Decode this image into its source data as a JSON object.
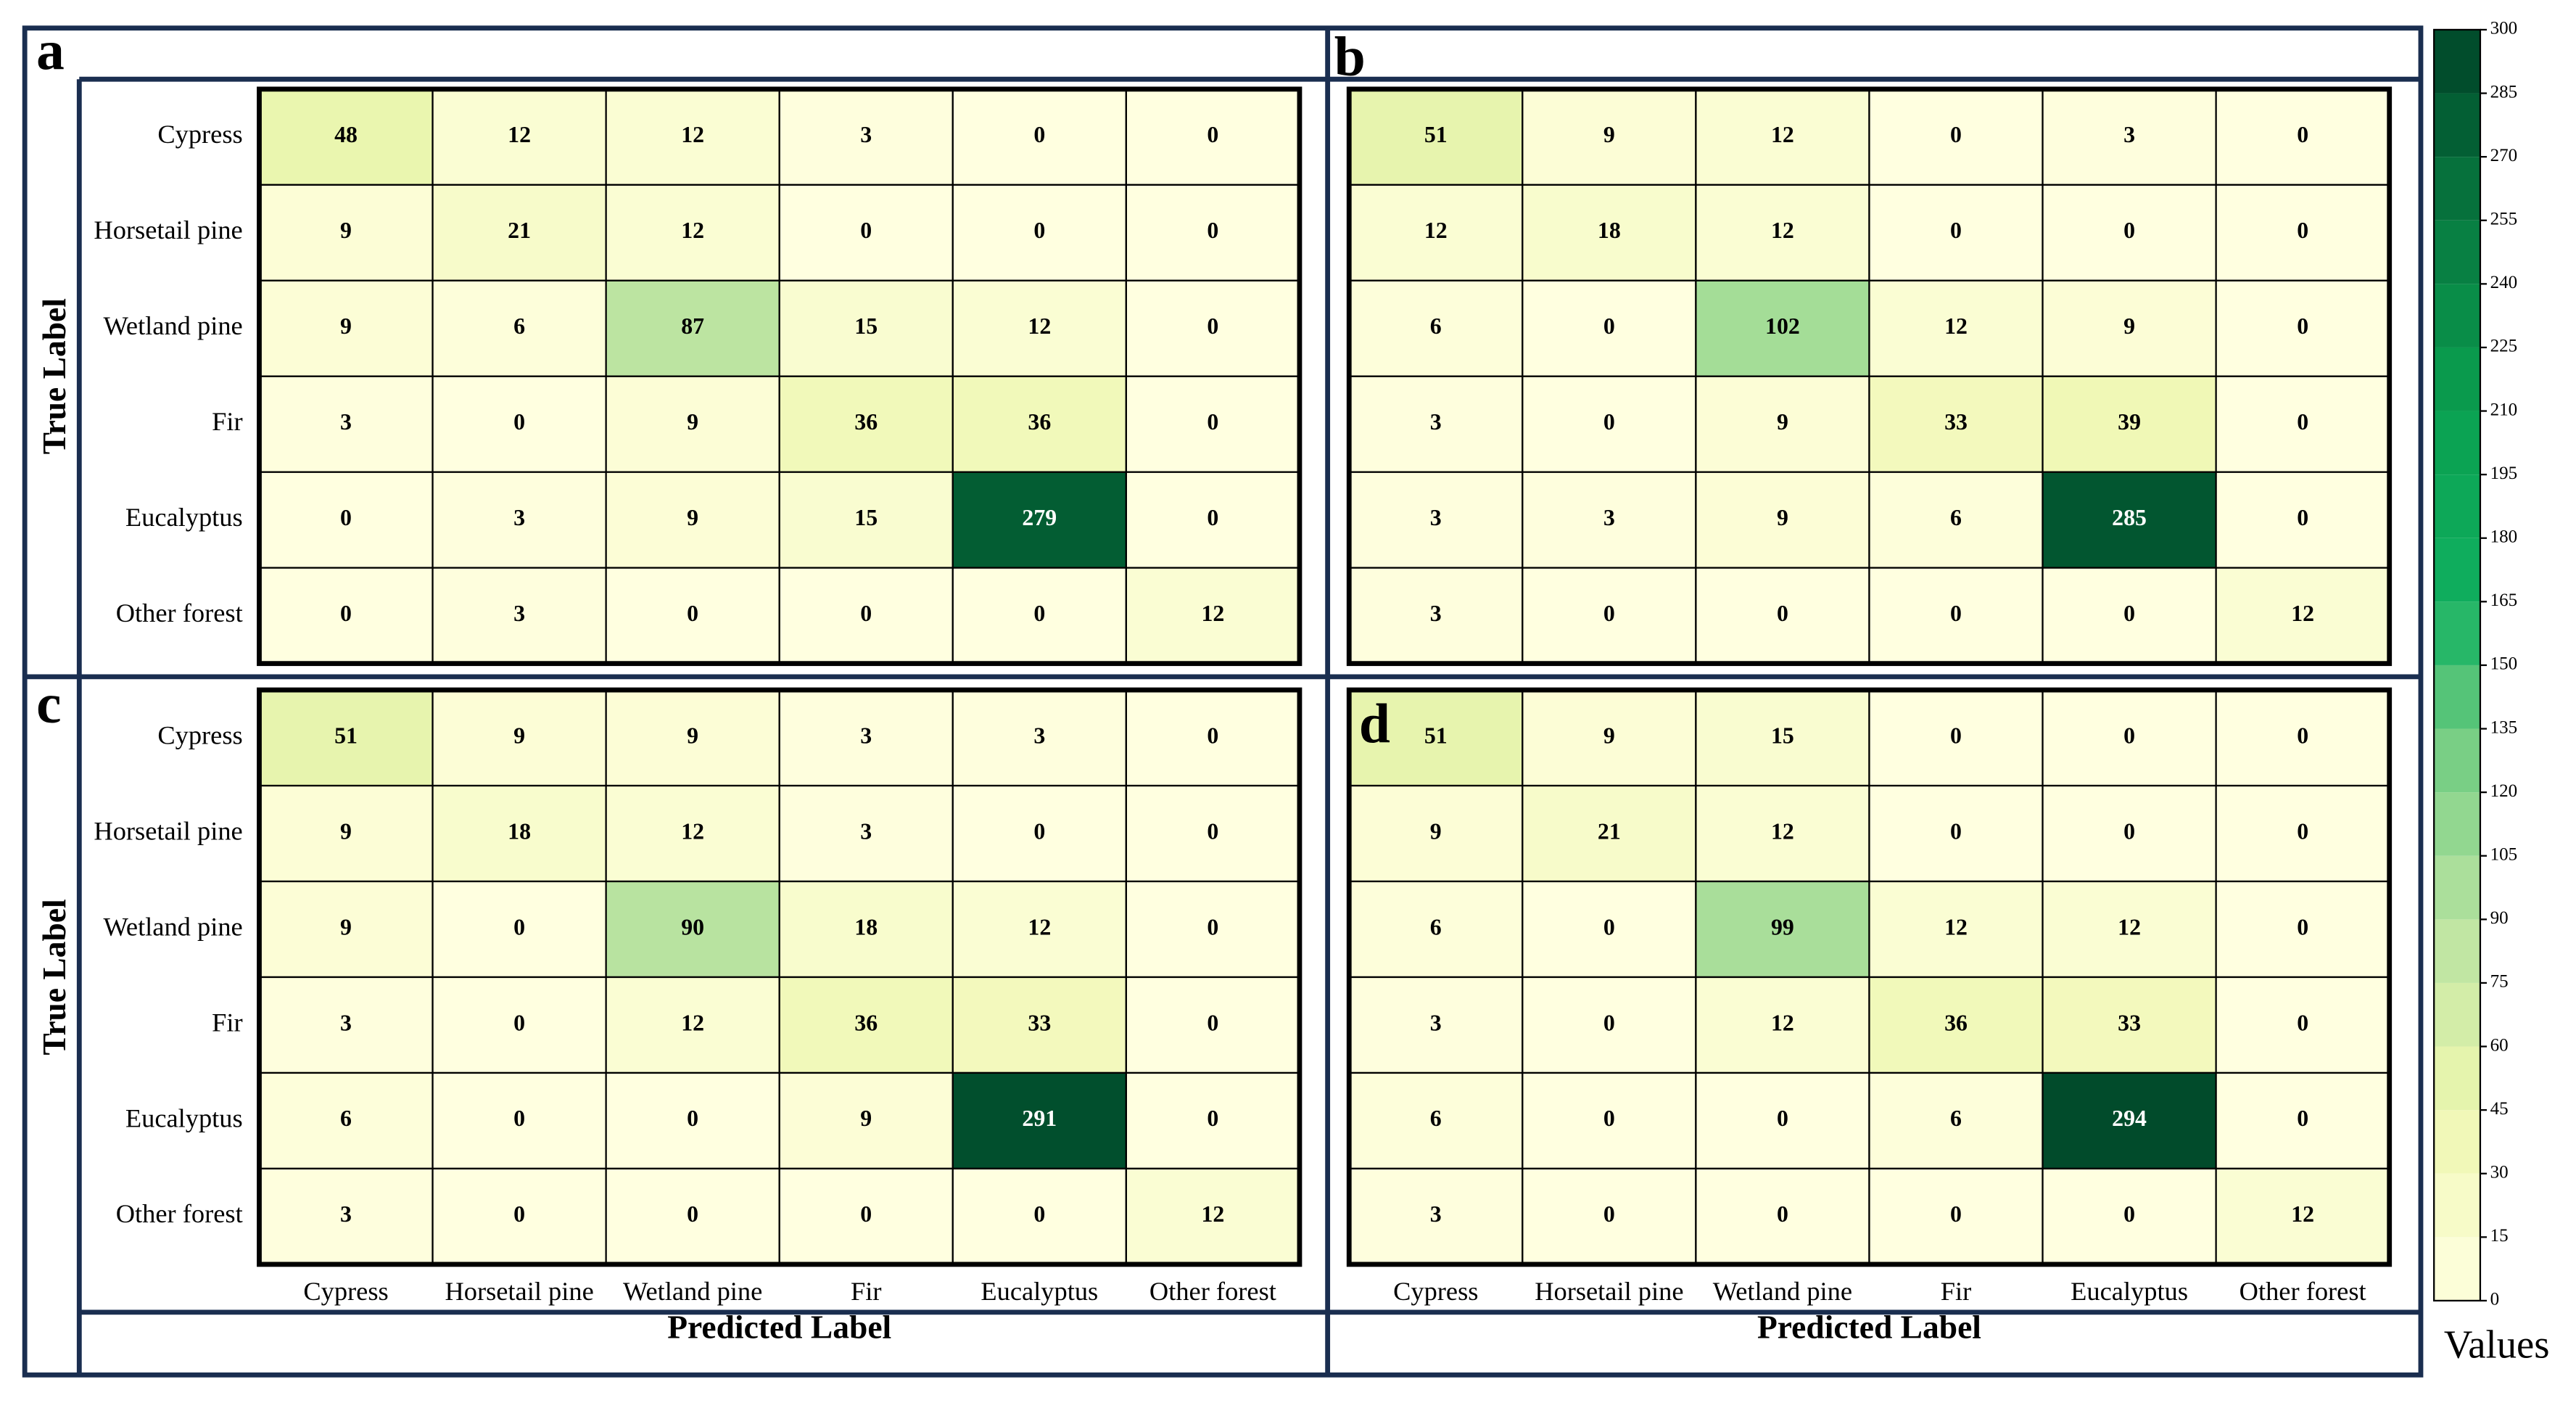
{
  "chart_data": [
    {
      "type": "heatmap",
      "title": "a",
      "ylabel": "True Label",
      "y_categories": [
        "Cypress",
        "Horsetail pine",
        "Wetland pine",
        "Fir",
        "Eucalyptus",
        "Other forest"
      ],
      "values": [
        [
          48,
          12,
          12,
          3,
          0,
          0
        ],
        [
          9,
          21,
          12,
          0,
          0,
          0
        ],
        [
          9,
          6,
          87,
          15,
          12,
          0
        ],
        [
          3,
          0,
          9,
          36,
          36,
          0
        ],
        [
          0,
          3,
          9,
          15,
          279,
          0
        ],
        [
          0,
          3,
          0,
          0,
          0,
          12
        ]
      ]
    },
    {
      "type": "heatmap",
      "title": "b",
      "values": [
        [
          51,
          9,
          12,
          0,
          3,
          0
        ],
        [
          12,
          18,
          12,
          0,
          0,
          0
        ],
        [
          6,
          0,
          102,
          12,
          9,
          0
        ],
        [
          3,
          0,
          9,
          33,
          39,
          0
        ],
        [
          3,
          3,
          9,
          6,
          285,
          0
        ],
        [
          3,
          0,
          0,
          0,
          0,
          12
        ]
      ]
    },
    {
      "type": "heatmap",
      "title": "c",
      "ylabel": "True Label",
      "xlabel": "Predicted Label",
      "y_categories": [
        "Cypress",
        "Horsetail pine",
        "Wetland pine",
        "Fir",
        "Eucalyptus",
        "Other forest"
      ],
      "x_categories": [
        "Cypress",
        "Horsetail pine",
        "Wetland pine",
        "Fir",
        "Eucalyptus",
        "Other forest"
      ],
      "values": [
        [
          51,
          9,
          9,
          3,
          3,
          0
        ],
        [
          9,
          18,
          12,
          3,
          0,
          0
        ],
        [
          9,
          0,
          90,
          18,
          12,
          0
        ],
        [
          3,
          0,
          12,
          36,
          33,
          0
        ],
        [
          6,
          0,
          0,
          9,
          291,
          0
        ],
        [
          3,
          0,
          0,
          0,
          0,
          12
        ]
      ]
    },
    {
      "type": "heatmap",
      "title": "d",
      "xlabel": "Predicted Label",
      "x_categories": [
        "Cypress",
        "Horsetail pine",
        "Wetland pine",
        "Fir",
        "Eucalyptus",
        "Other forest"
      ],
      "values": [
        [
          51,
          9,
          15,
          0,
          0,
          0
        ],
        [
          9,
          21,
          12,
          0,
          0,
          0
        ],
        [
          6,
          0,
          99,
          12,
          12,
          0
        ],
        [
          3,
          0,
          12,
          36,
          33,
          0
        ],
        [
          6,
          0,
          0,
          6,
          294,
          0
        ],
        [
          3,
          0,
          0,
          0,
          0,
          12
        ]
      ]
    }
  ],
  "colorbar": {
    "label": "Values",
    "lim": [
      0,
      300
    ],
    "ticks": [
      0,
      15,
      30,
      45,
      60,
      75,
      90,
      105,
      120,
      135,
      150,
      165,
      180,
      195,
      210,
      225,
      240,
      255,
      270,
      285,
      300
    ]
  }
}
